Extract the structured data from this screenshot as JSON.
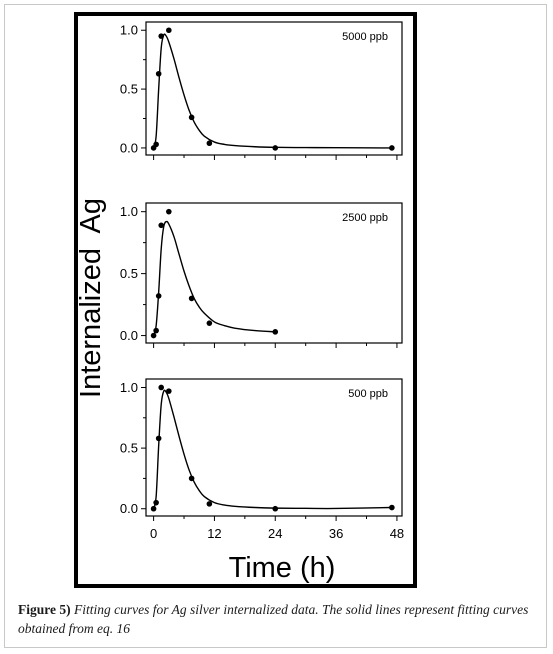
{
  "figure": {
    "ylabel": "Internalized  Ag",
    "xlabel": "Time (h)"
  },
  "caption": {
    "label": "Figure 5)",
    "text": "Fitting curves for Ag silver internalized data. The solid lines represent fitting curves obtained from eq. 16"
  },
  "chart_data": [
    {
      "type": "scatter",
      "annotation": "5000 ppb",
      "x": [
        0,
        0.5,
        1,
        1.5,
        3,
        7.5,
        11,
        24,
        47
      ],
      "y": [
        0.0,
        0.03,
        0.63,
        0.95,
        1.0,
        0.26,
        0.04,
        0.0,
        0.0
      ],
      "fit_x": [
        0,
        0.5,
        1,
        1.5,
        2,
        2.5,
        3,
        4,
        5,
        6,
        7,
        8,
        9,
        10,
        12,
        14,
        16,
        20,
        24,
        30,
        36,
        47
      ],
      "fit_y": [
        0.0,
        0.1,
        0.5,
        0.85,
        0.96,
        0.95,
        0.9,
        0.76,
        0.6,
        0.45,
        0.32,
        0.22,
        0.15,
        0.1,
        0.05,
        0.03,
        0.02,
        0.01,
        0.005,
        0.003,
        0.002,
        0.0
      ],
      "yticks": [
        "0.0",
        "0.5",
        "1.0"
      ],
      "ylim": [
        -0.06,
        1.07
      ],
      "xlim": [
        -1.5,
        49
      ]
    },
    {
      "type": "scatter",
      "annotation": "2500 ppb",
      "x": [
        0,
        0.5,
        1,
        1.5,
        3,
        7.5,
        11,
        24
      ],
      "y": [
        0.0,
        0.04,
        0.32,
        0.89,
        1.0,
        0.3,
        0.1,
        0.03
      ],
      "fit_x": [
        0,
        0.5,
        1,
        1.5,
        2,
        2.5,
        3,
        4,
        5,
        6,
        7,
        8,
        9,
        10,
        12,
        14,
        16,
        20,
        24
      ],
      "fit_y": [
        0.0,
        0.08,
        0.35,
        0.7,
        0.88,
        0.92,
        0.9,
        0.8,
        0.66,
        0.52,
        0.4,
        0.3,
        0.23,
        0.18,
        0.11,
        0.08,
        0.06,
        0.04,
        0.03
      ],
      "yticks": [
        "0.0",
        "0.5",
        "1.0"
      ],
      "ylim": [
        -0.06,
        1.07
      ],
      "xlim": [
        -1.5,
        49
      ]
    },
    {
      "type": "scatter",
      "annotation": "500 ppb",
      "x": [
        0,
        0.5,
        1,
        1.5,
        3,
        7.5,
        11,
        24,
        47
      ],
      "y": [
        0.0,
        0.05,
        0.58,
        1.0,
        0.97,
        0.25,
        0.04,
        0.0,
        0.01
      ],
      "fit_x": [
        0,
        0.5,
        1,
        1.5,
        2,
        2.5,
        3,
        4,
        5,
        6,
        7,
        8,
        9,
        10,
        12,
        14,
        16,
        20,
        24,
        30,
        36,
        47
      ],
      "fit_y": [
        0.0,
        0.1,
        0.52,
        0.86,
        0.97,
        0.96,
        0.91,
        0.76,
        0.6,
        0.45,
        0.32,
        0.22,
        0.15,
        0.1,
        0.05,
        0.03,
        0.02,
        0.01,
        0.005,
        0.003,
        0.002,
        0.01
      ],
      "xticks": [
        "0",
        "12",
        "24",
        "36",
        "48"
      ],
      "yticks": [
        "0.0",
        "0.5",
        "1.0"
      ],
      "ylim": [
        -0.06,
        1.07
      ],
      "xlim": [
        -1.5,
        49
      ]
    }
  ]
}
